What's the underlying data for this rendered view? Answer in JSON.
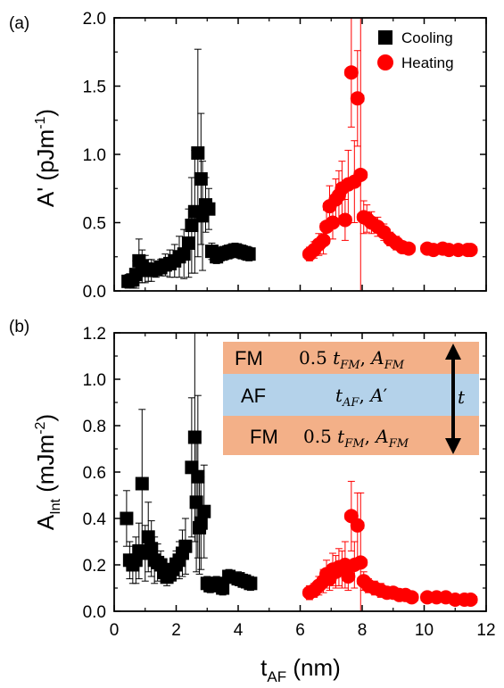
{
  "colors": {
    "cooling": "#000000",
    "heating": "#ff0000",
    "fm_layer": "#f3b088",
    "af_layer": "#b4d2ea"
  },
  "chart_data": [
    {
      "type": "scatter",
      "panel_label": "(a)",
      "ylabel_main": "A' (pJm",
      "ylabel_sup": "-1",
      "ylabel_end": ")",
      "xlim": [
        0,
        12
      ],
      "ylim": [
        0,
        2.0
      ],
      "xticks": [
        0,
        2,
        4,
        6,
        8,
        10,
        12
      ],
      "yticks": [
        "0.0",
        "0.5",
        "1.0",
        "1.5",
        "2.0"
      ],
      "legend_position": "top-right",
      "series": [
        {
          "name": "Cooling",
          "marker": "square",
          "x": [
            0.45,
            0.6,
            0.7,
            0.8,
            0.9,
            1.0,
            1.1,
            1.2,
            1.35,
            1.5,
            1.65,
            1.8,
            1.95,
            2.1,
            2.25,
            2.4,
            2.5,
            2.6,
            2.7,
            2.8,
            2.85,
            2.95,
            3.05,
            3.15,
            3.3,
            3.45,
            3.6,
            3.75,
            3.9,
            4.05,
            4.2,
            4.35
          ],
          "y": [
            0.07,
            0.08,
            0.12,
            0.22,
            0.18,
            0.16,
            0.15,
            0.15,
            0.16,
            0.17,
            0.19,
            0.2,
            0.22,
            0.25,
            0.27,
            0.35,
            0.48,
            0.58,
            1.01,
            0.82,
            0.55,
            0.63,
            0.6,
            0.29,
            0.25,
            0.27,
            0.28,
            0.29,
            0.3,
            0.29,
            0.28,
            0.27
          ],
          "err": [
            0.05,
            0.06,
            0.1,
            0.16,
            0.12,
            0.1,
            0.08,
            0.08,
            0.06,
            0.06,
            0.08,
            0.1,
            0.12,
            0.15,
            0.18,
            0.25,
            0.35,
            0.45,
            0.76,
            0.48,
            0.4,
            0.2,
            0.15,
            0.06,
            0.05,
            0.05,
            0.05,
            0.05,
            0.05,
            0.05,
            0.05,
            0.05
          ],
          "xerr": 0.1
        },
        {
          "name": "Heating",
          "marker": "circle",
          "x": [
            6.3,
            6.45,
            6.6,
            6.75,
            6.85,
            6.95,
            7.05,
            7.15,
            7.25,
            7.35,
            7.45,
            7.55,
            7.65,
            7.75,
            7.85,
            7.95,
            8.05,
            8.15,
            8.3,
            8.5,
            8.7,
            8.9,
            9.1,
            9.3,
            9.5,
            10.1,
            10.3,
            10.6,
            10.8,
            11.1,
            11.4,
            11.5
          ],
          "y": [
            0.27,
            0.3,
            0.34,
            0.37,
            0.47,
            0.62,
            0.5,
            0.67,
            0.7,
            0.75,
            0.52,
            0.78,
            1.6,
            0.8,
            1.41,
            0.85,
            0.54,
            0.53,
            0.5,
            0.47,
            0.43,
            0.38,
            0.35,
            0.32,
            0.31,
            0.31,
            0.3,
            0.31,
            0.3,
            0.3,
            0.3,
            0.3
          ],
          "err": [
            0.05,
            0.06,
            0.08,
            0.1,
            0.12,
            0.15,
            0.12,
            0.15,
            0.18,
            0.2,
            0.15,
            0.25,
            0.4,
            0.3,
            0.35,
            1.15,
            0.12,
            0.1,
            0.08,
            0.07,
            0.06,
            0.05,
            0.05,
            0.04,
            0.04,
            0.04,
            0.04,
            0.04,
            0.04,
            0.04,
            0.04,
            0.04
          ],
          "xerr": 0.2
        }
      ]
    },
    {
      "type": "scatter",
      "panel_label": "(b)",
      "ylabel_main": "A",
      "ylabel_sub": "Int",
      "ylabel_mid": " (mJm",
      "ylabel_sup": "-2",
      "ylabel_end": ")",
      "xlabel_main": "t",
      "xlabel_sub": "AF",
      "xlabel_end": " (nm)",
      "xlim": [
        0,
        12
      ],
      "ylim": [
        0,
        1.2
      ],
      "xticks": [
        0,
        2,
        4,
        6,
        8,
        10,
        12
      ],
      "yticks": [
        "0.0",
        "0.2",
        "0.4",
        "0.6",
        "0.8",
        "1.0",
        "1.2"
      ],
      "series": [
        {
          "name": "Cooling",
          "marker": "square",
          "x": [
            0.4,
            0.5,
            0.6,
            0.7,
            0.8,
            0.9,
            1.0,
            1.1,
            1.2,
            1.3,
            1.4,
            1.5,
            1.6,
            1.7,
            1.8,
            1.9,
            2.0,
            2.1,
            2.2,
            2.3,
            2.5,
            2.6,
            2.65,
            2.7,
            2.75,
            2.8,
            2.9,
            3.0,
            3.1,
            3.3,
            3.5,
            3.7,
            4.0,
            4.2,
            4.4
          ],
          "y": [
            0.4,
            0.22,
            0.2,
            0.22,
            0.26,
            0.55,
            0.25,
            0.32,
            0.27,
            0.22,
            0.21,
            0.2,
            0.17,
            0.15,
            0.16,
            0.18,
            0.2,
            0.22,
            0.25,
            0.28,
            0.62,
            0.75,
            0.47,
            0.58,
            0.36,
            0.38,
            0.43,
            0.12,
            0.11,
            0.12,
            0.1,
            0.15,
            0.14,
            0.13,
            0.12
          ],
          "err": [
            0.12,
            0.08,
            0.08,
            0.1,
            0.12,
            0.32,
            0.12,
            0.15,
            0.12,
            0.1,
            0.08,
            0.06,
            0.05,
            0.04,
            0.04,
            0.05,
            0.06,
            0.08,
            0.1,
            0.12,
            0.3,
            0.45,
            0.3,
            0.35,
            0.2,
            0.2,
            0.2,
            0.03,
            0.03,
            0.03,
            0.03,
            0.03,
            0.03,
            0.03,
            0.03
          ],
          "xerr": 0.1
        },
        {
          "name": "Heating",
          "marker": "circle",
          "x": [
            6.3,
            6.45,
            6.6,
            6.75,
            6.85,
            6.95,
            7.05,
            7.15,
            7.25,
            7.35,
            7.45,
            7.55,
            7.65,
            7.75,
            7.85,
            7.95,
            8.05,
            8.2,
            8.4,
            8.6,
            8.8,
            9.0,
            9.2,
            9.4,
            9.6,
            10.1,
            10.4,
            10.7,
            11.0,
            11.3,
            11.5
          ],
          "y": [
            0.08,
            0.09,
            0.11,
            0.13,
            0.16,
            0.14,
            0.18,
            0.17,
            0.19,
            0.18,
            0.2,
            0.15,
            0.41,
            0.2,
            0.37,
            0.21,
            0.13,
            0.11,
            0.1,
            0.09,
            0.08,
            0.08,
            0.07,
            0.07,
            0.06,
            0.06,
            0.06,
            0.06,
            0.05,
            0.05,
            0.05
          ],
          "err": [
            0.03,
            0.03,
            0.04,
            0.05,
            0.06,
            0.05,
            0.07,
            0.07,
            0.08,
            0.08,
            0.1,
            0.06,
            0.15,
            0.1,
            0.14,
            0.3,
            0.04,
            0.03,
            0.03,
            0.03,
            0.02,
            0.02,
            0.02,
            0.02,
            0.02,
            0.02,
            0.02,
            0.02,
            0.02,
            0.02,
            0.02
          ],
          "xerr": 0.2
        }
      ]
    }
  ],
  "inset": {
    "layers": [
      {
        "label": "FM",
        "params": "0.5 t_FM, A_FM",
        "p1": "0.5 ",
        "p2": "t",
        "p2sub": "FM",
        "p3": ", ",
        "p4": "A",
        "p4sub": "FM",
        "p5": ""
      },
      {
        "label": "AF",
        "p1": "",
        "p2": "t",
        "p2sub": "AF",
        "p3": ", ",
        "p4": "A",
        "p4sub": "",
        "p5": "′"
      },
      {
        "label": "FM",
        "p1": "0.5 ",
        "p2": "t",
        "p2sub": "FM",
        "p3": ", ",
        "p4": "A",
        "p4sub": "FM",
        "p5": ""
      }
    ],
    "thickness_label": "t"
  }
}
